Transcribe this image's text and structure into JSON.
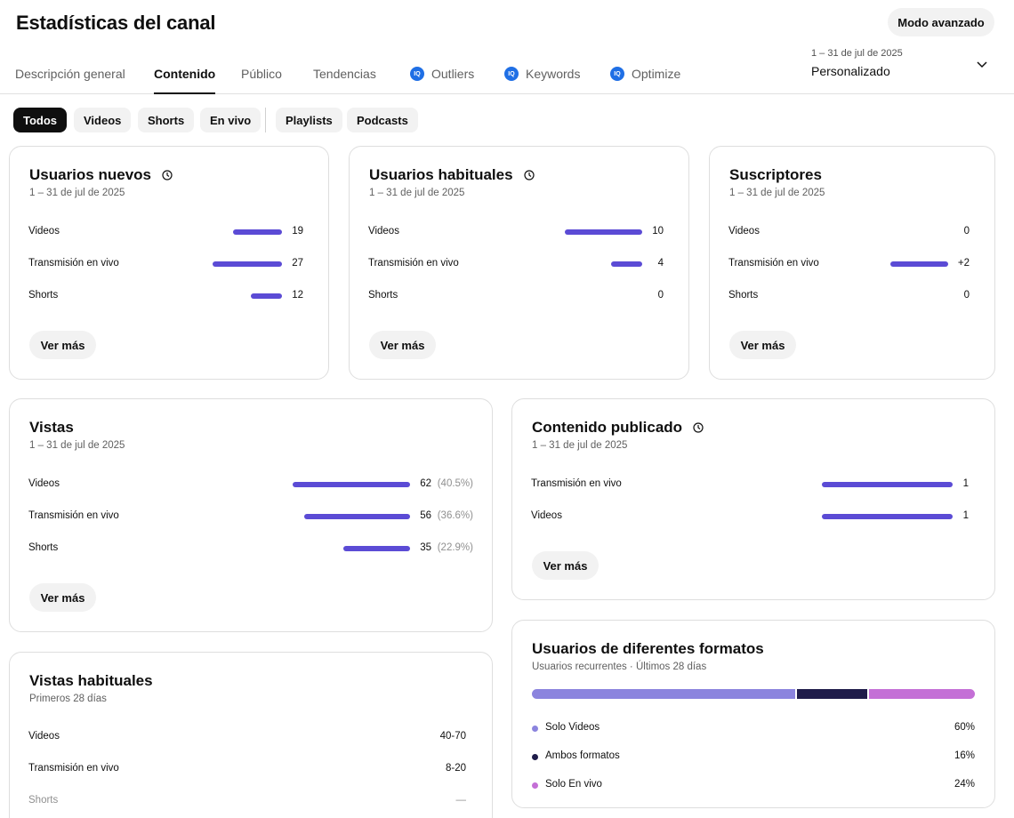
{
  "header": {
    "title": "Estadísticas del canal",
    "advanced_button": "Modo avanzado"
  },
  "tabs": [
    {
      "label": "Descripción general",
      "active": false
    },
    {
      "label": "Contenido",
      "active": true
    },
    {
      "label": "Público",
      "active": false
    },
    {
      "label": "Tendencias",
      "active": false
    },
    {
      "label": "Outliers",
      "icon": "iq-icon",
      "active": false
    },
    {
      "label": "Keywords",
      "icon": "iq-icon",
      "active": false
    },
    {
      "label": "Optimize",
      "icon": "iq-icon",
      "active": false
    }
  ],
  "iq_icon_text": "IQ",
  "date_range": {
    "range": "1 – 31 de jul de 2025",
    "label": "Personalizado"
  },
  "chips": [
    {
      "label": "Todos",
      "active": true
    },
    {
      "label": "Videos",
      "active": false
    },
    {
      "label": "Shorts",
      "active": false
    },
    {
      "label": "En vivo",
      "active": false
    },
    {
      "label": "Playlists",
      "active": false
    },
    {
      "label": "Podcasts",
      "active": false
    }
  ],
  "colors": {
    "bar": "#5b4bd5",
    "seg_solo_videos": "#8b84de",
    "seg_ambos": "#1f1c4a",
    "seg_solo_en_vivo": "#c46fd6"
  },
  "cards": {
    "usuarios_nuevos": {
      "title": "Usuarios nuevos",
      "subtitle": "1 – 31 de jul de 2025",
      "more": "Ver más",
      "rows": [
        {
          "label": "Videos",
          "value": "19",
          "amount": 19
        },
        {
          "label": "Transmisión en vivo",
          "value": "27",
          "amount": 27
        },
        {
          "label": "Shorts",
          "value": "12",
          "amount": 12
        }
      ]
    },
    "usuarios_habituales": {
      "title": "Usuarios habituales",
      "subtitle": "1 – 31 de jul de 2025",
      "more": "Ver más",
      "rows": [
        {
          "label": "Videos",
          "value": "10",
          "amount": 10
        },
        {
          "label": "Transmisión en vivo",
          "value": "4",
          "amount": 4
        },
        {
          "label": "Shorts",
          "value": "0",
          "amount": 0
        }
      ]
    },
    "suscriptores": {
      "title": "Suscriptores",
      "subtitle": "1 – 31 de jul de 2025",
      "more": "Ver más",
      "rows": [
        {
          "label": "Videos",
          "value": "0",
          "amount": 0
        },
        {
          "label": "Transmisión en vivo",
          "value": "+2",
          "amount": 2
        },
        {
          "label": "Shorts",
          "value": "0",
          "amount": 0
        }
      ]
    },
    "vistas": {
      "title": "Vistas",
      "subtitle": "1 – 31 de jul de 2025",
      "more": "Ver más",
      "rows": [
        {
          "label": "Videos",
          "value": "62",
          "pct": "(40.5%)",
          "amount": 62
        },
        {
          "label": "Transmisión en vivo",
          "value": "56",
          "pct": "(36.6%)",
          "amount": 56
        },
        {
          "label": "Shorts",
          "value": "35",
          "pct": "(22.9%)",
          "amount": 35
        }
      ]
    },
    "contenido_publicado": {
      "title": "Contenido publicado",
      "subtitle": "1 – 31 de jul de 2025",
      "more": "Ver más",
      "rows": [
        {
          "label": "Transmisión en vivo",
          "value": "1",
          "amount": 1
        },
        {
          "label": "Videos",
          "value": "1",
          "amount": 1
        }
      ]
    },
    "vistas_habituales": {
      "title": "Vistas habituales",
      "subtitle": "Primeros 28 días",
      "rows": [
        {
          "label": "Videos",
          "value": "40-70"
        },
        {
          "label": "Transmisión en vivo",
          "value": "8-20"
        },
        {
          "label": "Shorts",
          "value": "—"
        }
      ]
    },
    "formatos": {
      "title": "Usuarios de diferentes formatos",
      "subtitle": "Usuarios recurrentes · Últimos 28 días",
      "segments": [
        {
          "label": "Solo Videos",
          "value": "60%",
          "share": 0.6
        },
        {
          "label": "Ambos formatos",
          "value": "16%",
          "share": 0.16
        },
        {
          "label": "Solo En vivo",
          "value": "24%",
          "share": 0.24
        }
      ]
    }
  }
}
